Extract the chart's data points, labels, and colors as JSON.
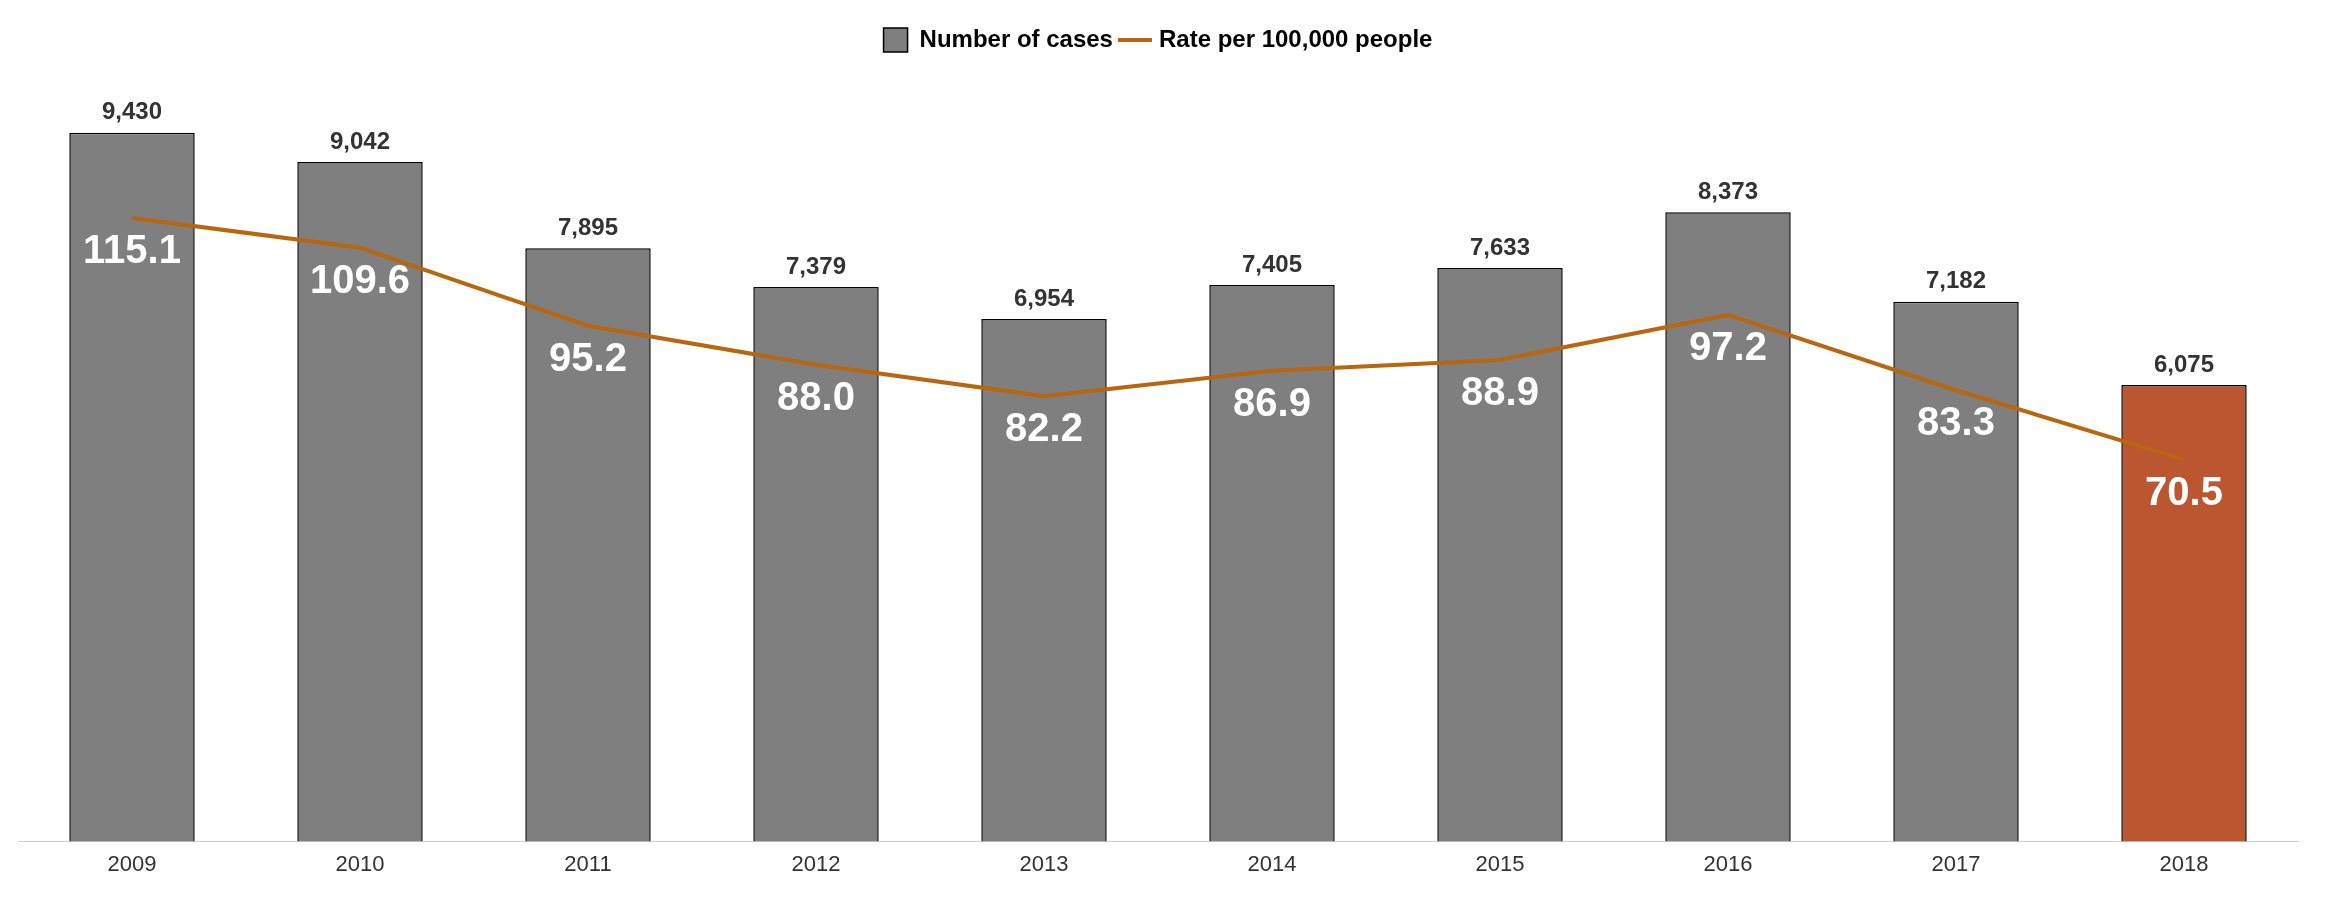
{
  "chart_data": {
    "type": "bar",
    "categories": [
      "2009",
      "2010",
      "2011",
      "2012",
      "2013",
      "2014",
      "2015",
      "2016",
      "2017",
      "2018"
    ],
    "series": [
      {
        "name": "Number of cases",
        "values": [
          9430,
          9042,
          7895,
          7379,
          6954,
          7405,
          7633,
          8373,
          7182,
          6075
        ],
        "value_labels": [
          "9,430",
          "9,042",
          "7,895",
          "7,379",
          "6,954",
          "7,405",
          "7,633",
          "8,373",
          "7,182",
          "6,075"
        ],
        "colors": [
          "#7f7f7f",
          "#7f7f7f",
          "#7f7f7f",
          "#7f7f7f",
          "#7f7f7f",
          "#7f7f7f",
          "#7f7f7f",
          "#7f7f7f",
          "#7f7f7f",
          "#bb5630"
        ]
      },
      {
        "name": "Rate per 100,000 people",
        "type": "line",
        "axis": "y2",
        "color": "#b8660f",
        "values": [
          115.1,
          109.6,
          95.2,
          88.0,
          82.2,
          86.9,
          88.9,
          97.2,
          83.3,
          70.5
        ],
        "value_labels": [
          "115.1",
          "109.6",
          "95.2",
          "88.0",
          "82.2",
          "86.9",
          "88.9",
          "97.2",
          "83.3",
          "70.5"
        ]
      }
    ],
    "legend": "top",
    "marker": "none",
    "grid": false
  }
}
